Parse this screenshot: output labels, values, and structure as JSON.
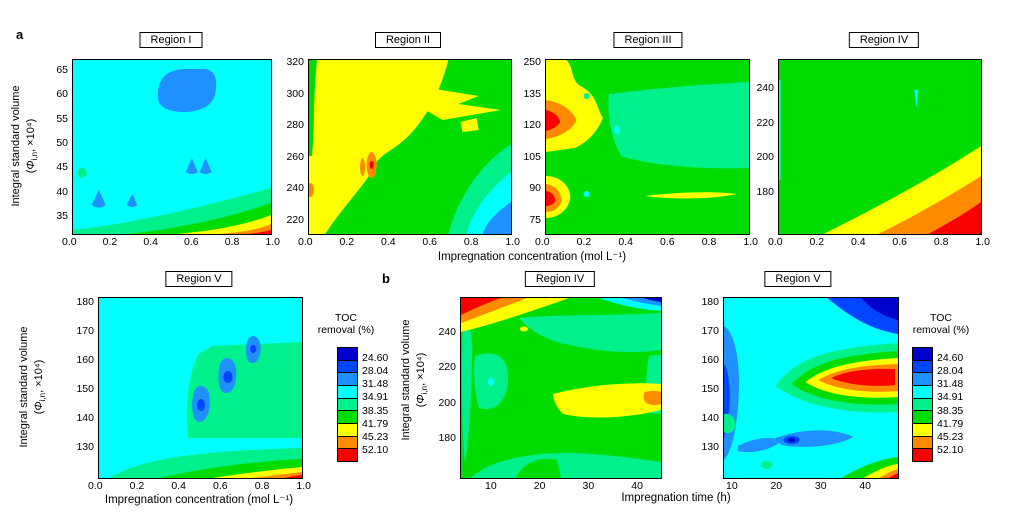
{
  "panels": {
    "a": "a",
    "b": "b"
  },
  "ylabel": {
    "line1": "Integral standard volume",
    "pre": "(",
    "phi": "Φ",
    "sub": "i,n",
    "post": ", ×10⁴)"
  },
  "xlabels": {
    "concentration": "Impregnation concentration (mol L⁻¹)",
    "time": "Impregnation time (h)"
  },
  "legend": {
    "title_1": "TOC",
    "title_2": "removal (%)",
    "levels": [
      "24.60",
      "28.04",
      "31.48",
      "34.91",
      "38.35",
      "41.79",
      "45.23",
      "52.10"
    ],
    "colors": [
      "#0000CC",
      "#0046FF",
      "#1E90FF",
      "#00FFFF",
      "#00F08C",
      "#00DC00",
      "#FFFF00",
      "#FF8A00",
      "#F80000"
    ]
  },
  "plots": {
    "a1": {
      "title": "Region I",
      "yticks": [
        "65",
        "60",
        "55",
        "50",
        "45",
        "40",
        "35"
      ],
      "xticks": [
        "0.0",
        "0.2",
        "0.4",
        "0.6",
        "0.8",
        "1.0"
      ]
    },
    "a2": {
      "title": "Region II",
      "yticks": [
        "320",
        "300",
        "280",
        "260",
        "240",
        "220"
      ],
      "xticks": [
        "0.0",
        "0.2",
        "0.4",
        "0.6",
        "0.8",
        "1.0"
      ]
    },
    "a3": {
      "title": "Region III",
      "yticks": [
        "250",
        "135",
        "120",
        "105",
        "90",
        "75"
      ],
      "xticks": [
        "0.0",
        "0.2",
        "0.4",
        "0.6",
        "0.8",
        "1.0"
      ]
    },
    "a4": {
      "title": "Region IV",
      "yticks": [
        "240",
        "220",
        "200",
        "180"
      ],
      "xticks": [
        "0.0",
        "0.2",
        "0.4",
        "0.6",
        "0.8",
        "1.0"
      ]
    },
    "a5": {
      "title": "Region V",
      "yticks": [
        "180",
        "170",
        "160",
        "150",
        "140",
        "130"
      ],
      "xticks": [
        "0.0",
        "0.2",
        "0.4",
        "0.6",
        "0.8",
        "1.0"
      ]
    },
    "b1": {
      "title": "Region IV",
      "yticks": [
        "240",
        "220",
        "200",
        "180"
      ],
      "xticks": [
        "10",
        "20",
        "30",
        "40"
      ]
    },
    "b2": {
      "title": "Region V",
      "yticks": [
        "180",
        "170",
        "160",
        "150",
        "140",
        "130"
      ],
      "xticks": [
        "10",
        "20",
        "30",
        "40"
      ]
    }
  },
  "chart_data": [
    {
      "type": "heatmap",
      "panel": "a",
      "title": "Region I",
      "xlabel": "Impregnation concentration (mol L⁻¹)",
      "ylabel": "Integral standard volume (Φi,n, ×10⁴)",
      "x_ticks": [
        0.0,
        0.2,
        0.4,
        0.6,
        0.8,
        1.0
      ],
      "y_ticks": [
        35,
        40,
        45,
        50,
        55,
        60,
        65
      ],
      "x_range": [
        0.0,
        1.0
      ],
      "y_range_approx": [
        32.5,
        67.5
      ],
      "color_levels_pct": [
        24.6,
        28.04,
        31.48,
        34.91,
        38.35,
        41.79,
        45.23,
        52.1
      ],
      "features": "Dominantly 31.48–34.91% (cyan). Blue pockets 28.04–31.48% at (0.42–0.72, 57–66), (0.60,45), (0.65,45), (0.13,39), (0.30,39); small green spot at (0.05,44.5). TOC removal rises through green/yellow/orange to >52.1% (red) at the bottom-right corner (x→1.0, y→33)."
    },
    {
      "type": "heatmap",
      "panel": "a",
      "title": "Region II",
      "xlabel": "Impregnation concentration (mol L⁻¹)",
      "ylabel": "Integral standard volume (Φi,n, ×10⁴)",
      "x_ticks": [
        0.0,
        0.2,
        0.4,
        0.6,
        0.8,
        1.0
      ],
      "y_ticks": [
        220,
        240,
        260,
        280,
        300,
        320
      ],
      "x_range": [
        0.0,
        1.0
      ],
      "y_range_approx": [
        210,
        322
      ],
      "color_levels_pct": [
        24.6,
        28.04,
        31.48,
        34.91,
        38.35,
        41.79,
        45.23,
        52.1
      ],
      "features": "Upper-left half 41.79–45.23% (yellow); right/top-right 38.35–41.79% (green) with yellow wedges near (0.55–0.85, 280–305). Orange spots 45.23–52.10% near (0.30, 245–262) and at left edge (0.0, 230). Bottom-right corner grades teal→cyan→blue down to 28.04–31.48%."
    },
    {
      "type": "heatmap",
      "panel": "a",
      "title": "Region III",
      "xlabel": "Impregnation concentration (mol L⁻¹)",
      "ylabel": "Integral standard volume (Φi,n, ×10⁴)",
      "x_ticks": [
        0.0,
        0.2,
        0.4,
        0.6,
        0.8,
        1.0
      ],
      "y_ticks_displayed": [
        "75",
        "90",
        "105",
        "120",
        "135",
        "250"
      ],
      "x_range": [
        0.0,
        1.0
      ],
      "y_range_approx": [
        70,
        250
      ],
      "color_levels_pct": [
        24.6,
        28.04,
        31.48,
        34.91,
        38.35,
        41.79,
        45.23,
        52.1
      ],
      "features": "Background 38.35–41.79% (green) with 34.91–38.35% (teal) across mid-right. Hot spots >52.1% (red cores ringed by orange/yellow) at left edge near y≈120–126 and y≈78–88; yellow sliver along (0.5–0.95, ≈83); small cyan dots at (0.35,122) and (0.20,82)."
    },
    {
      "type": "heatmap",
      "panel": "a",
      "title": "Region IV",
      "xlabel": "Impregnation concentration (mol L⁻¹)",
      "ylabel": "Integral standard volume (Φi,n, ×10⁴)",
      "x_ticks": [
        0.0,
        0.2,
        0.4,
        0.6,
        0.8,
        1.0
      ],
      "y_ticks": [
        180,
        200,
        220,
        240
      ],
      "x_range": [
        0.0,
        1.0
      ],
      "y_range_approx": [
        165,
        255
      ],
      "color_levels_pct": [
        24.6,
        28.04,
        31.48,
        34.91,
        38.35,
        41.79,
        45.23,
        52.1
      ],
      "features": "Dominantly 38.35–41.79% (green). TOC removal increases toward bottom-right: yellow band from (0.23, bottom) to (1.0, ≈215), orange from (0.5, bottom) to (1.0, ≈188), red >52.1% corner near (0.78–1.0, <175). Tiny cyan sliver near (0.68, 240)."
    },
    {
      "type": "heatmap",
      "panel": "a",
      "title": "Region V",
      "xlabel": "Impregnation concentration (mol L⁻¹)",
      "ylabel": "Integral standard volume (Φi,n, ×10⁴)",
      "x_ticks": [
        0.0,
        0.2,
        0.4,
        0.6,
        0.8,
        1.0
      ],
      "y_ticks": [
        130,
        140,
        150,
        160,
        170,
        180
      ],
      "x_range": [
        0.0,
        1.0
      ],
      "y_range_approx": [
        120,
        182
      ],
      "color_levels_pct": [
        24.6,
        28.04,
        31.48,
        34.91,
        38.35,
        41.79,
        45.23,
        52.1
      ],
      "features": "Dominantly 31.48–34.91% (cyan). Blue teardrop pockets (28.04–31.48%, darker cores) at (0.50,142), (0.63,153), (0.77,164) inside a teal-green region (x 0.45–1.0, y 133–166). Bottom strip grades green→yellow→orange→red (>52.1%) toward bottom-right."
    },
    {
      "type": "heatmap",
      "panel": "b",
      "title": "Region IV",
      "xlabel": "Impregnation time (h)",
      "ylabel": "Integral standard volume (Φi,n, ×10⁴)",
      "x_ticks": [
        10,
        20,
        30,
        40
      ],
      "y_ticks": [
        180,
        200,
        220,
        240
      ],
      "x_range_approx": [
        2,
        48
      ],
      "y_range_approx": [
        165,
        255
      ],
      "color_levels_pct": [
        24.6,
        28.04,
        31.48,
        34.91,
        38.35,
        41.79,
        45.23,
        52.1
      ],
      "features": "Green 38.35–41.79% background with teal 34.91–38.35% patches (left column, top-center band, right edge, bottom strip). Yellow 41.79–45.23% region (20–48 h, 200–230) with orange at right edge ≈(45,215). Top-left corner red→orange→yellow (>52.1% at corner); top-right corner cyan→blue→dark blue (<28.04%)."
    },
    {
      "type": "heatmap",
      "panel": "b",
      "title": "Region V",
      "xlabel": "Impregnation time (h)",
      "ylabel": "Integral standard volume (Φi,n, ×10⁴)",
      "x_ticks": [
        10,
        20,
        30,
        40
      ],
      "y_ticks": [
        130,
        140,
        150,
        160,
        170,
        180
      ],
      "x_range_approx": [
        7,
        48
      ],
      "y_range_approx": [
        120,
        182
      ],
      "color_levels_pct": [
        24.6,
        28.04,
        31.48,
        34.91,
        38.35,
        41.79,
        45.23,
        52.1
      ],
      "features": "Dominantly cyan 31.48–34.91%. Blue bands (<31.48%) along left edge (dark core 24.6–28%), bottom-center (dark core ≈25 h,132), and top-right corner (<24.60% core). Hot spot at (35–48 h, 145–162) reaching >52.1% (red) ringed by orange/yellow/green/teal; orange-red sliver at bottom-right corner."
    }
  ]
}
